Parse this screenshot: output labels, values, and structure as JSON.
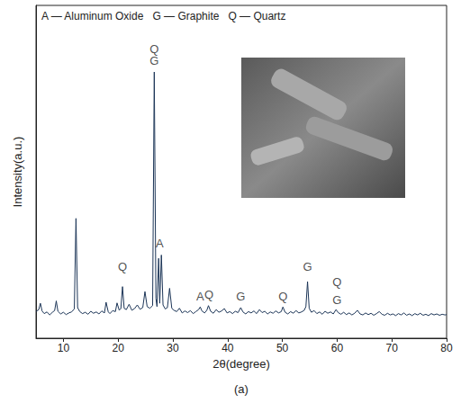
{
  "chart_data": {
    "type": "line",
    "title": "A — Aluminum Oxide   G — Graphite   Q — Quartz",
    "x_label": "2θ(degree)",
    "y_label": "Intensity(a.u.)",
    "caption": "(a)",
    "color": "#1c3557",
    "grid": false,
    "tick_labels": "x",
    "xlim": [
      5,
      80
    ],
    "xticks": [
      10,
      20,
      30,
      40,
      50,
      60,
      70,
      80
    ],
    "ylim": [
      0,
      100
    ],
    "yticks": [],
    "x": [
      5.0,
      5.5,
      5.8,
      6.1,
      6.5,
      7.0,
      7.5,
      8.0,
      8.4,
      8.7,
      9.0,
      9.5,
      10.0,
      10.5,
      11.0,
      11.5,
      12.0,
      12.3,
      12.6,
      13.0,
      13.5,
      14.0,
      14.5,
      15.0,
      15.5,
      16.0,
      16.5,
      17.0,
      17.5,
      17.8,
      18.2,
      18.5,
      19.0,
      19.5,
      19.8,
      20.2,
      20.5,
      20.8,
      21.1,
      21.5,
      22.0,
      22.5,
      23.0,
      23.5,
      24.0,
      24.5,
      24.9,
      25.3,
      25.8,
      26.3,
      26.6,
      26.9,
      27.1,
      27.4,
      27.6,
      27.9,
      28.2,
      28.6,
      29.0,
      29.4,
      29.8,
      30.2,
      30.7,
      31.2,
      31.7,
      32.2,
      32.7,
      33.2,
      33.7,
      34.2,
      34.7,
      35.0,
      35.3,
      35.8,
      36.2,
      36.5,
      36.9,
      37.4,
      37.9,
      38.4,
      38.9,
      39.4,
      39.9,
      40.4,
      40.9,
      41.4,
      41.9,
      42.4,
      42.8,
      43.3,
      43.8,
      44.3,
      44.8,
      45.3,
      45.8,
      46.3,
      46.8,
      47.3,
      47.8,
      48.3,
      48.8,
      49.3,
      49.8,
      50.1,
      50.5,
      51.0,
      51.5,
      52.0,
      52.5,
      53.0,
      53.5,
      54.0,
      54.3,
      54.6,
      54.9,
      55.3,
      55.8,
      56.3,
      56.8,
      57.3,
      57.8,
      58.3,
      58.8,
      59.3,
      59.8,
      60.2,
      60.7,
      61.2,
      61.7,
      62.2,
      62.7,
      63.2,
      63.7,
      64.2,
      64.7,
      65.2,
      65.7,
      66.2,
      66.7,
      67.2,
      67.7,
      68.2,
      68.7,
      69.2,
      69.7,
      70.2,
      70.7,
      71.2,
      71.7,
      72.2,
      72.7,
      73.2,
      73.7,
      74.2,
      74.7,
      75.2,
      75.7,
      76.2,
      76.7,
      77.2,
      77.7,
      78.2,
      78.7,
      79.2,
      79.7,
      80.0
    ],
    "values": [
      8.0,
      8.6,
      10.5,
      8.2,
      7.4,
      7.9,
      7.0,
      7.8,
      8.3,
      11.2,
      8.1,
      7.3,
      7.8,
      7.1,
      7.6,
      7.9,
      8.8,
      36.0,
      9.2,
      8.0,
      7.4,
      7.8,
      7.2,
      8.1,
      7.5,
      7.9,
      7.3,
      8.2,
      7.6,
      10.8,
      7.9,
      7.4,
      8.3,
      8.0,
      10.6,
      8.4,
      8.9,
      15.5,
      9.0,
      8.6,
      10.2,
      8.4,
      8.9,
      10.0,
      8.7,
      9.2,
      14.0,
      9.5,
      9.0,
      9.8,
      80.0,
      12.0,
      9.5,
      24.0,
      10.5,
      25.0,
      10.0,
      8.8,
      9.2,
      15.0,
      9.0,
      8.4,
      8.0,
      9.0,
      7.6,
      8.2,
      7.7,
      8.3,
      7.4,
      8.0,
      8.6,
      9.4,
      8.2,
      7.6,
      8.4,
      9.8,
      8.1,
      7.5,
      8.6,
      7.8,
      8.2,
      8.9,
      7.6,
      8.0,
      7.4,
      8.1,
      7.7,
      9.2,
      7.9,
      7.3,
      8.0,
      7.6,
      8.2,
      7.4,
      8.6,
      7.7,
      8.1,
      7.3,
      7.9,
      7.5,
      8.2,
      7.6,
      8.0,
      9.4,
      7.8,
      7.3,
      8.0,
      7.5,
      8.3,
      7.6,
      7.9,
      8.4,
      9.5,
      17.0,
      9.0,
      7.8,
      8.3,
      7.4,
      7.9,
      7.2,
      8.1,
      7.5,
      7.9,
      7.3,
      8.6,
      7.7,
      7.2,
      7.8,
      7.1,
      7.6,
      7.0,
      7.5,
      8.4,
      7.3,
      7.0,
      7.6,
      7.1,
      7.5,
      6.9,
      7.4,
      8.0,
      7.2,
      6.9,
      7.5,
      7.0,
      7.3,
      6.8,
      7.4,
      7.0,
      7.6,
      6.9,
      7.3,
      6.8,
      7.4,
      7.0,
      7.5,
      6.9,
      7.2,
      6.8,
      7.4,
      7.0,
      7.3,
      6.9,
      7.2,
      7.0,
      7.1
    ],
    "annotations": [
      {
        "x": 20.8,
        "y": 21.4,
        "text": "Q"
      },
      {
        "x": 26.6,
        "y": 87.0,
        "text": "Q"
      },
      {
        "x": 26.6,
        "y": 83.5,
        "text": "G"
      },
      {
        "x": 27.6,
        "y": 28.5,
        "text": "A"
      },
      {
        "x": 35.0,
        "y": 12.5,
        "text": "A"
      },
      {
        "x": 36.6,
        "y": 13.0,
        "text": "Q"
      },
      {
        "x": 42.4,
        "y": 12.5,
        "text": "G"
      },
      {
        "x": 50.1,
        "y": 12.5,
        "text": "Q"
      },
      {
        "x": 54.6,
        "y": 21.4,
        "text": "G"
      },
      {
        "x": 60.0,
        "y": 17.0,
        "text": "Q"
      },
      {
        "x": 60.0,
        "y": 11.5,
        "text": "G"
      }
    ]
  }
}
